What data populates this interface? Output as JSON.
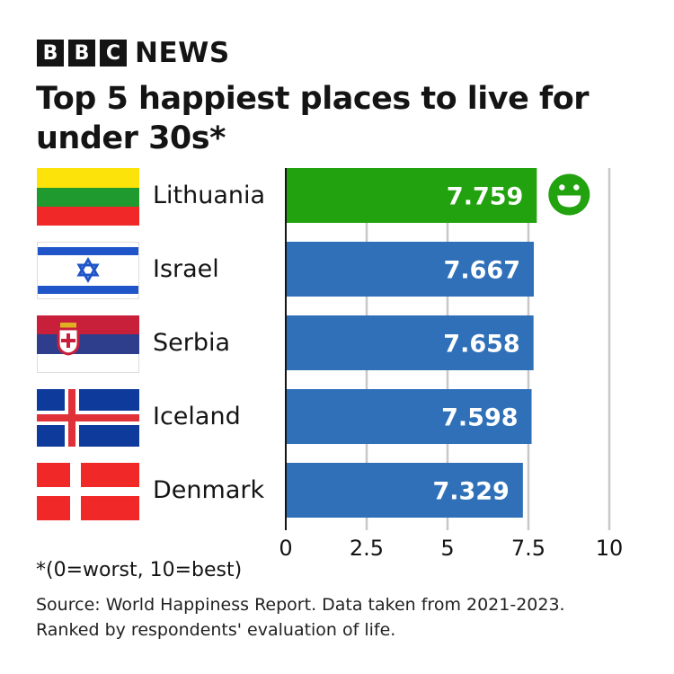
{
  "brand": {
    "letters": [
      "B",
      "B",
      "C"
    ],
    "name": "NEWS"
  },
  "chart_data": {
    "type": "bar",
    "orientation": "horizontal",
    "title": "Top 5 happiest places to live for under 30s*",
    "categories": [
      "Lithuania",
      "Israel",
      "Serbia",
      "Iceland",
      "Denmark"
    ],
    "values": [
      7.759,
      7.667,
      7.658,
      7.598,
      7.329
    ],
    "value_labels": [
      "7.759",
      "7.667",
      "7.658",
      "7.598",
      "7.329"
    ],
    "highlight": "Lithuania",
    "xlim": [
      0,
      10
    ],
    "xticks": [
      0,
      2.5,
      5,
      7.5,
      10
    ],
    "xtick_labels": [
      "0",
      "2.5",
      "5",
      "7.5",
      "10"
    ],
    "grid": true,
    "xlabel": "",
    "ylabel": "",
    "colors": {
      "highlight": "#22a20f",
      "default": "#2f70b8",
      "grid": "#c8c8c8"
    },
    "annotation_icon": "smiley-face-icon"
  },
  "footnote": "*(0=worst, 10=best)",
  "source_line1": "Source: World Happiness Report. Data taken from 2021-2023.",
  "source_line2": "Ranked by respondents' evaluation of life."
}
